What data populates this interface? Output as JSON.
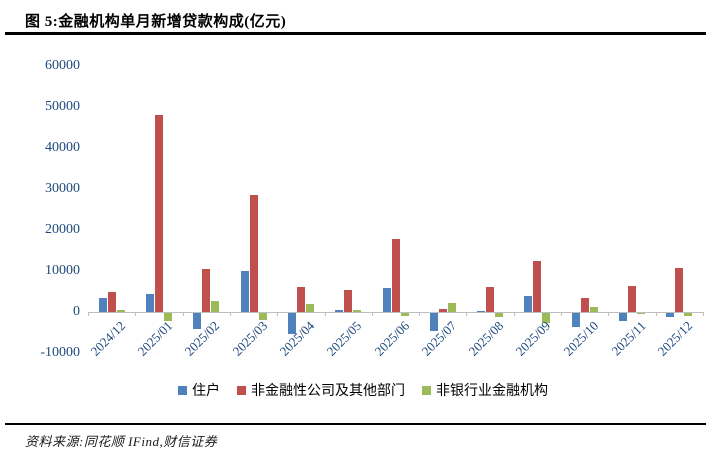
{
  "title": "图 5:金融机构单月新增贷款构成(亿元)",
  "source": "资料来源:同花顺 IFind,财信证券",
  "colors": {
    "household": "#4F81BD",
    "corporate": "#C0504D",
    "nonbank": "#9BBB59",
    "axis_text": "#1F497D",
    "axis_line": "#BFBFBF"
  },
  "chart_data": {
    "type": "bar",
    "title": "金融机构单月新增贷款构成(亿元)",
    "categories": [
      "2024/12",
      "2025/01",
      "2025/02",
      "2025/03",
      "2025/04",
      "2025/05",
      "2025/06",
      "2025/07",
      "2025/08",
      "2025/09",
      "2025/10",
      "2025/11",
      "2025/12"
    ],
    "series": [
      {
        "name": "住户",
        "color": "#4F81BD",
        "values": [
          3500,
          4400,
          -3900,
          9900,
          -5200,
          600,
          5900,
          -4400,
          200,
          4000,
          -3500,
          -2000,
          -900
        ]
      },
      {
        "name": "非金融性公司及其他部门",
        "color": "#C0504D",
        "values": [
          4900,
          48000,
          10400,
          28500,
          6200,
          5300,
          17800,
          700,
          6100,
          12400,
          3500,
          6400,
          10800
        ]
      },
      {
        "name": "非银行业金融机构",
        "color": "#9BBB59",
        "values": [
          500,
          -2000,
          2800,
          -1700,
          2000,
          500,
          -800,
          2300,
          -1000,
          -2500,
          1200,
          -300,
          -700
        ]
      }
    ],
    "xlabel": "",
    "ylabel": "",
    "ylim": [
      -10000,
      60000
    ],
    "ytick_step": 10000,
    "grid": false,
    "xlabel_rotation": 45,
    "legend_position": "bottom"
  }
}
